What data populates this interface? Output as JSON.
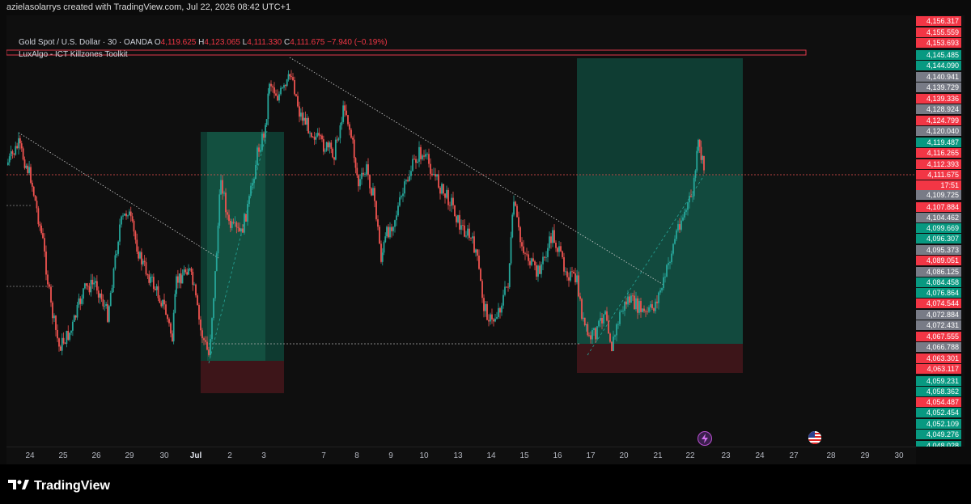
{
  "header": {
    "credit": "azielasolarrys created with TradingView.com, Jul 22, 2026 08:42 UTC+1"
  },
  "legend": {
    "symbol": "Gold Spot / U.S. Dollar · 30 · OANDA",
    "open_label": "O",
    "open": "4,119.625",
    "high_label": "H",
    "high": "4,123.065",
    "low_label": "L",
    "low": "4,111.330",
    "close_label": "C",
    "close": "4,111.675",
    "change": "−7.940 (−0.19%)",
    "indicator": "LuxAlgo - ICT Killzones Toolkit"
  },
  "price_scale": {
    "labels": [
      {
        "text": "4,156.317",
        "color": "#f23645"
      },
      {
        "text": "4,155.559",
        "color": "#f23645"
      },
      {
        "text": "4,153.693",
        "color": "#f23645"
      },
      {
        "text": "4,145.485",
        "color": "#089981"
      },
      {
        "text": "4,144.090",
        "color": "#089981"
      },
      {
        "text": "4,140.941",
        "color": "#787b86"
      },
      {
        "text": "4,139.729",
        "color": "#787b86"
      },
      {
        "text": "4,139.336",
        "color": "#f23645"
      },
      {
        "text": "4,128.924",
        "color": "#787b86"
      },
      {
        "text": "4,124.799",
        "color": "#f23645"
      },
      {
        "text": "4,120.040",
        "color": "#787b86"
      },
      {
        "text": "4,119.487",
        "color": "#089981"
      },
      {
        "text": "4,116.265",
        "color": "#f23645"
      },
      {
        "text": "4,112.393",
        "color": "#f23645"
      },
      {
        "text": "4,111.675",
        "color": "#f23645"
      },
      {
        "text": "17:51",
        "color": "#f23645"
      },
      {
        "text": "4,109.725",
        "color": "#787b86"
      },
      {
        "text": "4,107.884",
        "color": "#f23645"
      },
      {
        "text": "4,104.462",
        "color": "#787b86"
      },
      {
        "text": "4,099.669",
        "color": "#089981"
      },
      {
        "text": "4,096.307",
        "color": "#089981"
      },
      {
        "text": "4,095.373",
        "color": "#787b86"
      },
      {
        "text": "4,089.051",
        "color": "#f23645"
      },
      {
        "text": "4,086.125",
        "color": "#787b86"
      },
      {
        "text": "4,084.458",
        "color": "#089981"
      },
      {
        "text": "4,076.864",
        "color": "#089981"
      },
      {
        "text": "4,074.544",
        "color": "#f23645"
      },
      {
        "text": "4,072.884",
        "color": "#787b86"
      },
      {
        "text": "4,072.431",
        "color": "#787b86"
      },
      {
        "text": "4,067.555",
        "color": "#f23645"
      },
      {
        "text": "4,066.788",
        "color": "#787b86"
      },
      {
        "text": "4,063.301",
        "color": "#f23645"
      },
      {
        "text": "4,063.117",
        "color": "#f23645"
      },
      {
        "text": "4,059.231",
        "color": "#089981"
      },
      {
        "text": "4,058.362",
        "color": "#089981"
      },
      {
        "text": "4,054.487",
        "color": "#f23645"
      },
      {
        "text": "4,052.454",
        "color": "#089981"
      },
      {
        "text": "4,052.109",
        "color": "#089981"
      },
      {
        "text": "4,049.276",
        "color": "#089981"
      },
      {
        "text": "4,048.028",
        "color": "#089981"
      }
    ]
  },
  "time_axis": {
    "labels": [
      {
        "text": "24"
      },
      {
        "text": "25"
      },
      {
        "text": "26"
      },
      {
        "text": "29"
      },
      {
        "text": "30"
      },
      {
        "text": "Jul",
        "bold": true
      },
      {
        "text": "2"
      },
      {
        "text": "3"
      },
      {
        "text": "7"
      },
      {
        "text": "8"
      },
      {
        "text": "9"
      },
      {
        "text": "10"
      },
      {
        "text": "13"
      },
      {
        "text": "14"
      },
      {
        "text": "15"
      },
      {
        "text": "16"
      },
      {
        "text": "17"
      },
      {
        "text": "20"
      },
      {
        "text": "21"
      },
      {
        "text": "22"
      },
      {
        "text": "23"
      },
      {
        "text": "24"
      },
      {
        "text": "27"
      },
      {
        "text": "28"
      },
      {
        "text": "29"
      },
      {
        "text": "30"
      }
    ]
  },
  "colors": {
    "up": "#26a69a",
    "down": "#ef5350",
    "long_zone": "#0f3d33",
    "long_zone_light": "#124a3e",
    "stop_zone": "#3d1519",
    "resistance_zone": "#e03a4b",
    "background": "#0f0f0f"
  },
  "footer": {
    "brand": "TradingView"
  },
  "icons": [
    "lightning-icon",
    "us-flag-icon",
    "tradingview-logo-icon"
  ]
}
